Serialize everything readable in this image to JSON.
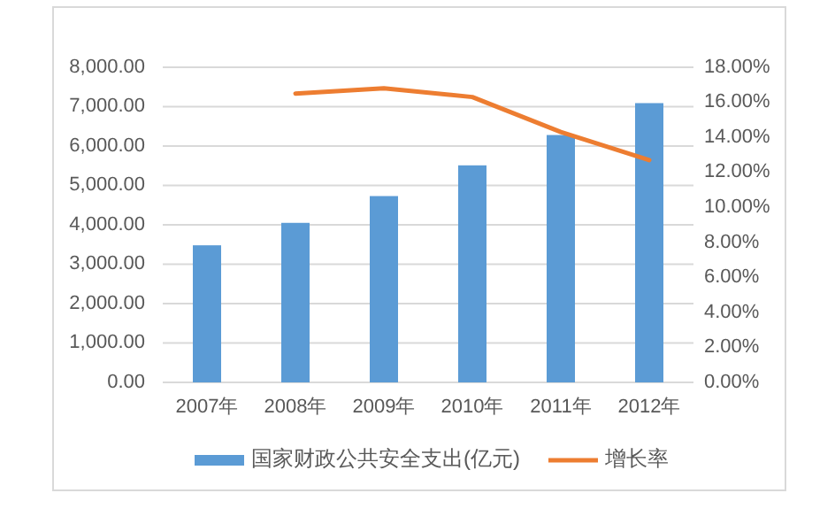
{
  "chart_data": {
    "type": "bar",
    "categories": [
      "2007年",
      "2008年",
      "2009年",
      "2010年",
      "2011年",
      "2012年"
    ],
    "series": [
      {
        "name": "国家财政公共安全支出(亿元)",
        "color": "#5b9bd5",
        "values": [
          3480,
          4050,
          4730,
          5510,
          6280,
          7090
        ]
      },
      {
        "name": "增长率",
        "type": "line",
        "axis": "y2",
        "color": "#ed7d31",
        "values": [
          null,
          16.5,
          16.8,
          16.3,
          14.3,
          12.7
        ]
      }
    ],
    "ylim": [
      0,
      8000
    ],
    "yticks": [
      {
        "value": 0,
        "label": "0.00"
      },
      {
        "value": 1000,
        "label": "1,000.00"
      },
      {
        "value": 2000,
        "label": "2,000.00"
      },
      {
        "value": 3000,
        "label": "3,000.00"
      },
      {
        "value": 4000,
        "label": "4,000.00"
      },
      {
        "value": 5000,
        "label": "5,000.00"
      },
      {
        "value": 6000,
        "label": "6,000.00"
      },
      {
        "value": 7000,
        "label": "7,000.00"
      },
      {
        "value": 8000,
        "label": "8,000.00"
      }
    ],
    "y2lim": [
      0,
      18
    ],
    "y2ticks": [
      {
        "value": 0,
        "label": "0.00%"
      },
      {
        "value": 2,
        "label": "2.00%"
      },
      {
        "value": 4,
        "label": "4.00%"
      },
      {
        "value": 6,
        "label": "6.00%"
      },
      {
        "value": 8,
        "label": "8.00%"
      },
      {
        "value": 10,
        "label": "10.00%"
      },
      {
        "value": 12,
        "label": "12.00%"
      },
      {
        "value": 14,
        "label": "14.00%"
      },
      {
        "value": 16,
        "label": "16.00%"
      },
      {
        "value": 18,
        "label": "18.00%"
      }
    ],
    "grid": "y",
    "legend": "bottom"
  }
}
